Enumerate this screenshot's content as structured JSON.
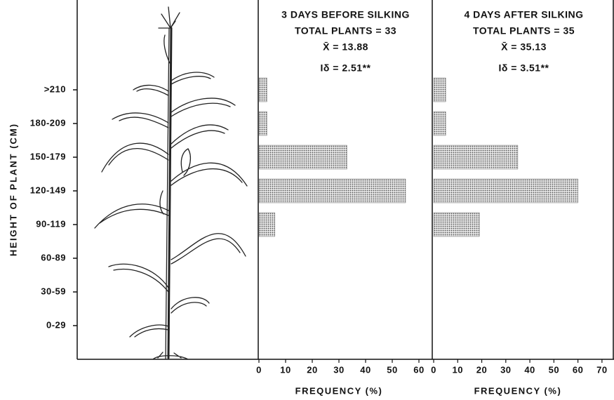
{
  "chart_data": [
    {
      "type": "barh",
      "title": "3 DAYS BEFORE SILKING",
      "stats": [
        "TOTAL PLANTS = 33",
        "X̄ = 13.88",
        "Iδ = 2.51**"
      ],
      "y_label": "HEIGHT OF PLANT (CM)",
      "x_label": "FREQUENCY (%)",
      "categories": [
        "0-29",
        "30-59",
        "60-89",
        "90-119",
        "120-149",
        "150-179",
        "180-209",
        ">210"
      ],
      "values": [
        0,
        0,
        0,
        6,
        55,
        33,
        3,
        3
      ],
      "color": "#555555",
      "xlim": [
        0,
        65
      ],
      "xticks": [
        0,
        10,
        20,
        30,
        40,
        50,
        60
      ]
    },
    {
      "type": "barh",
      "title": "4 DAYS AFTER SILKING",
      "stats": [
        "TOTAL PLANTS = 35",
        "X̄ = 35.13",
        "Iδ = 3.51**"
      ],
      "x_label": "FREQUENCY (%)",
      "values": [
        0,
        0,
        0,
        19,
        60,
        35,
        5,
        5
      ],
      "color": "#555555",
      "xlim": [
        0,
        75
      ],
      "xticks": [
        0,
        10,
        20,
        30,
        40,
        50,
        60,
        70
      ]
    }
  ]
}
